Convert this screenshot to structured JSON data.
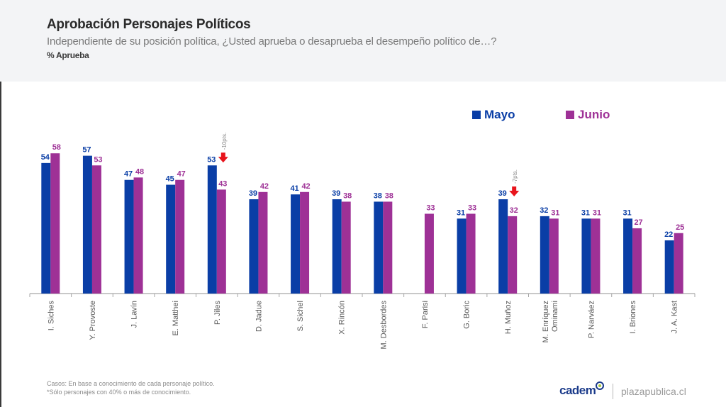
{
  "header": {
    "title": "Aprobación Personajes Políticos",
    "subtitle": "Independiente de su posición política, ¿Usted aprueba o desaprueba el desempeño político de…?",
    "measure": "% Aprueba"
  },
  "legend": {
    "items": [
      {
        "label": "Mayo",
        "color": "#0a3ea6"
      },
      {
        "label": "Junio",
        "color": "#9e3196"
      }
    ]
  },
  "chart_data": {
    "type": "bar",
    "title": "Aprobación Personajes Políticos",
    "xlabel": "",
    "ylabel": "% Aprueba",
    "ylim": [
      0,
      60
    ],
    "grid": false,
    "legend_position": "top-right",
    "categories": [
      "I. Siches",
      "Y. Provoste",
      "J. Lavín",
      "E. Matthei",
      "P. Jiles",
      "D. Jadue",
      "S. Sichel",
      "X. Rincón",
      "M. Desbordes",
      "F. Parisi",
      "G. Boric",
      "H. Muñoz",
      "M. Enríquez Ominami",
      "P. Narváez",
      "I. Briones",
      "J. A. Kast"
    ],
    "series": [
      {
        "name": "Mayo",
        "color": "#0a3ea6",
        "values": [
          54,
          57,
          47,
          45,
          53,
          39,
          41,
          39,
          38,
          null,
          31,
          39,
          32,
          31,
          31,
          22
        ]
      },
      {
        "name": "Junio",
        "color": "#9e3196",
        "values": [
          58,
          53,
          48,
          47,
          43,
          42,
          42,
          38,
          38,
          33,
          33,
          32,
          31,
          31,
          27,
          25
        ]
      }
    ],
    "annotations": [
      {
        "category": "P. Jiles",
        "text": "-10pts.",
        "marker": "down-arrow",
        "color": "#e8141c"
      },
      {
        "category": "H. Muñoz",
        "text": "-7pts.",
        "marker": "down-arrow",
        "color": "#e8141c"
      }
    ]
  },
  "footer": {
    "notes": [
      "Casos: En base a conocimiento de cada personaje político.",
      "*Sólo personajes con 40% o más de conocimiento."
    ],
    "brand": "cadem",
    "site": "plazapublica.cl"
  }
}
